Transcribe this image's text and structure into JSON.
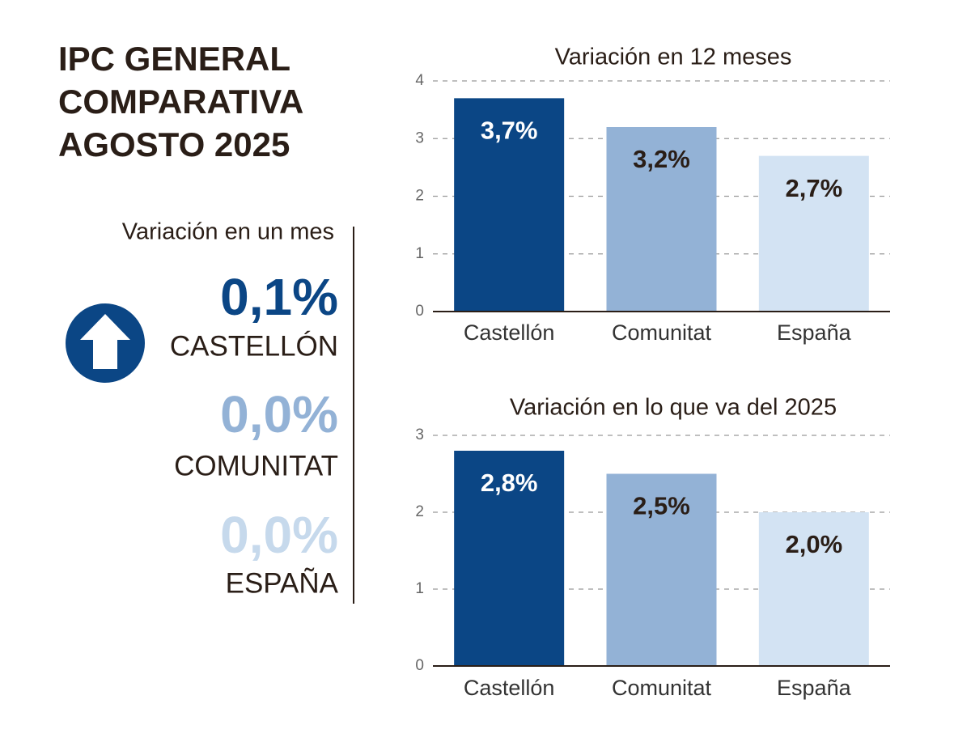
{
  "header": {
    "title_lines": [
      "IPC GENERAL",
      "COMPARATIVA",
      "AGOSTO 2025"
    ]
  },
  "monthly": {
    "title": "Variación en un mes",
    "items": [
      {
        "value": "0,1%",
        "label": "CASTELLÓN",
        "color": "#0b4685"
      },
      {
        "value": "0,0%",
        "label": "COMUNITAT",
        "color": "#93b2d6"
      },
      {
        "value": "0,0%",
        "label": "ESPAÑA",
        "color": "#c6d9ec"
      }
    ]
  },
  "chart_data": [
    {
      "type": "bar",
      "title": "Variación en 12 meses",
      "categories": [
        "Castellón",
        "Comunitat",
        "España"
      ],
      "values": [
        3.7,
        3.2,
        2.7
      ],
      "value_labels": [
        "3,7%",
        "3,2%",
        "2,7%"
      ],
      "colors": [
        "#0b4685",
        "#93b2d6",
        "#d3e3f3"
      ],
      "ylim": [
        0,
        4
      ],
      "yticks": [
        0,
        1,
        2,
        3,
        4
      ],
      "grid": true
    },
    {
      "type": "bar",
      "title": "Variación en lo que va del 2025",
      "categories": [
        "Castellón",
        "Comunitat",
        "España"
      ],
      "values": [
        2.8,
        2.5,
        2.0
      ],
      "value_labels": [
        "2,8%",
        "2,5%",
        "2,0%"
      ],
      "colors": [
        "#0b4685",
        "#93b2d6",
        "#d3e3f3"
      ],
      "ylim": [
        0,
        3
      ],
      "yticks": [
        0,
        1,
        2,
        3
      ],
      "grid": true
    }
  ]
}
